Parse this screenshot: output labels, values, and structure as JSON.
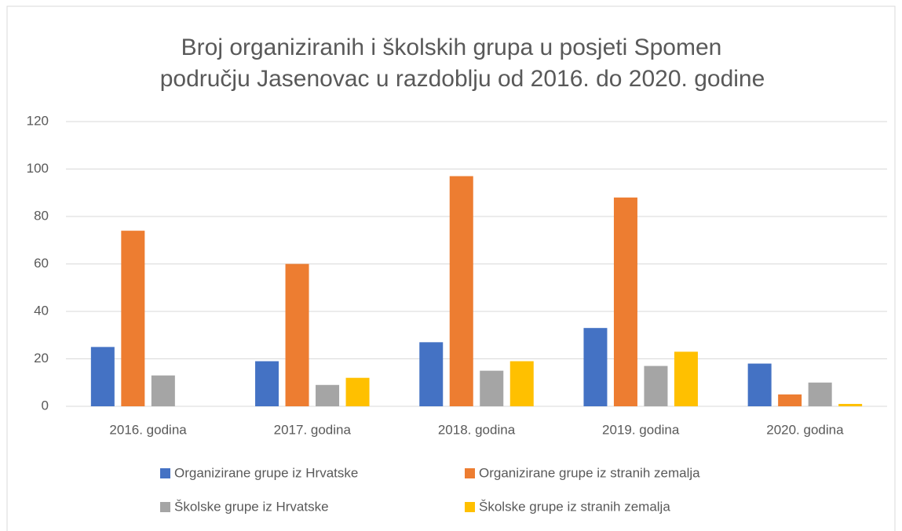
{
  "chart_data": {
    "type": "bar",
    "title": [
      "Broj organiziranih i školskih grupa u posjeti Spomen",
      "području Jasenovac u razdoblju od 2016. do 2020. godine"
    ],
    "categories": [
      "2016. godina",
      "2017. godina",
      "2018. godina",
      "2019. godina",
      "2020. godina"
    ],
    "series": [
      {
        "name": "Organizirane grupe iz Hrvatske",
        "color": "#4472c4",
        "values": [
          25,
          19,
          27,
          33,
          18
        ]
      },
      {
        "name": "Organizirane grupe iz stranih zemalja",
        "color": "#ed7d31",
        "values": [
          74,
          60,
          97,
          88,
          5
        ]
      },
      {
        "name": "Školske grupe iz Hrvatske",
        "color": "#a5a5a5",
        "values": [
          13,
          9,
          15,
          17,
          10
        ]
      },
      {
        "name": "Školske grupe iz stranih zemalja",
        "color": "#ffc000",
        "values": [
          0,
          12,
          19,
          23,
          1
        ]
      }
    ],
    "ylim": [
      0,
      120
    ],
    "yticks": [
      0,
      20,
      40,
      60,
      80,
      100,
      120
    ],
    "grid": true,
    "legend": "bottom"
  }
}
